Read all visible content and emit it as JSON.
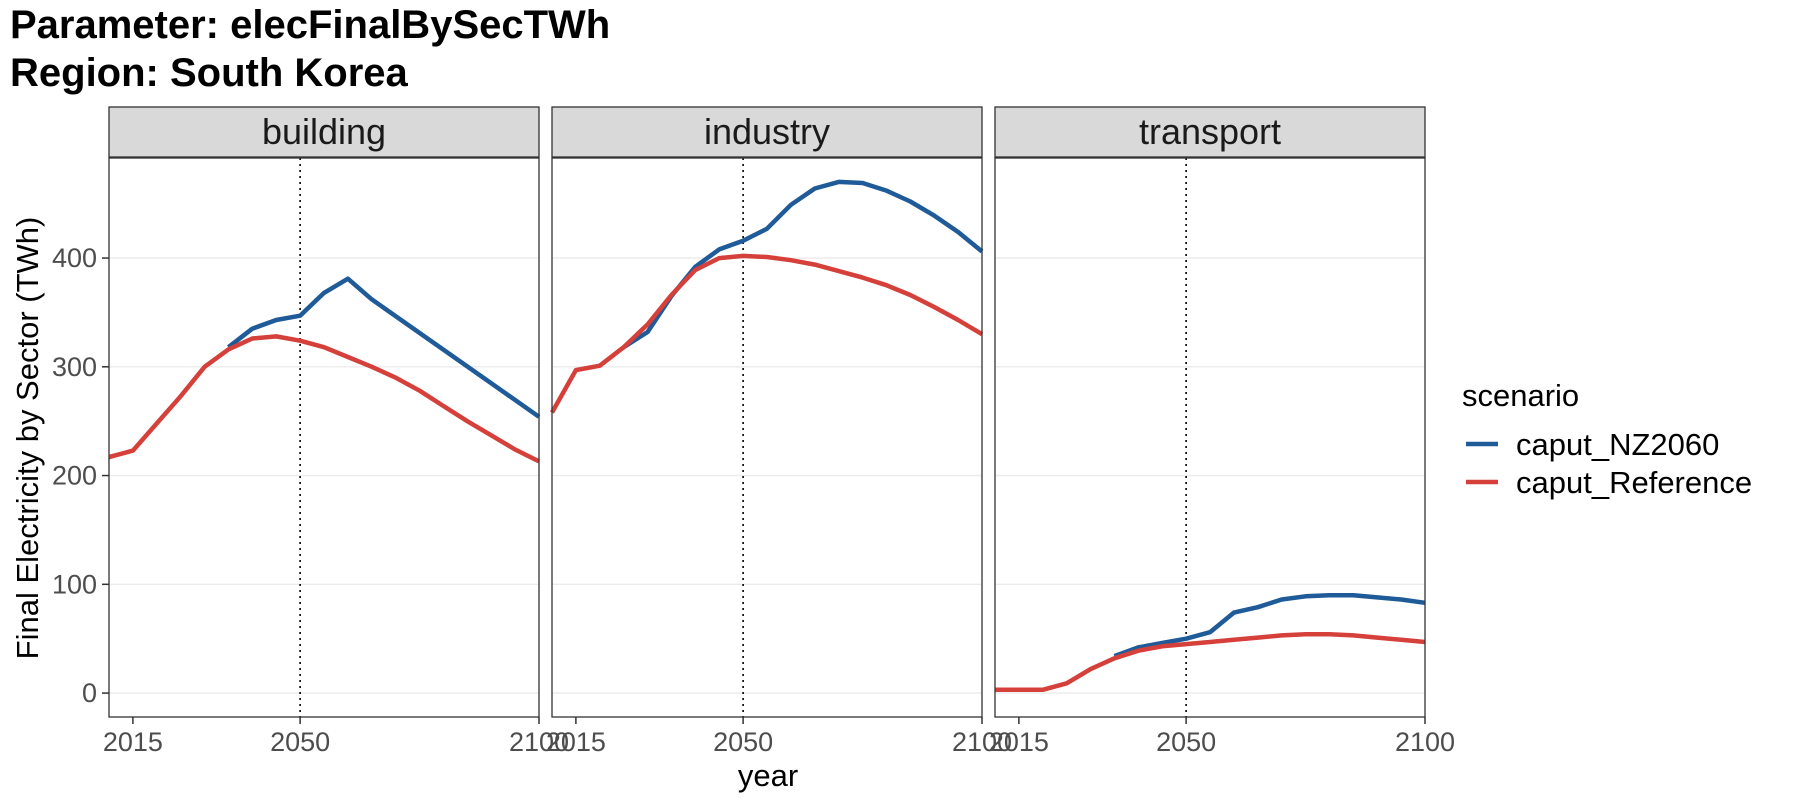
{
  "title_line1": "Parameter: elecFinalBySecTWh",
  "title_line2": "Region: South Korea",
  "colors": {
    "caput_NZ2060": "#1f5a99",
    "caput_Reference": "#d6403a",
    "strip_bg": "#d9d9d9",
    "grid": "#ebebeb"
  },
  "chart_data": {
    "type": "line",
    "xlabel": "year",
    "ylabel": "Final Electricity by Sector (TWh)",
    "xlim": [
      2010,
      2100
    ],
    "ylim": [
      -22,
      492
    ],
    "x_ticks": [
      2015,
      2050,
      2100
    ],
    "y_ticks": [
      0,
      100,
      200,
      300,
      400
    ],
    "vline_x": 2050,
    "grid": true,
    "legend": {
      "title": "scenario",
      "position": "right",
      "entries": [
        "caput_NZ2060",
        "caput_Reference"
      ]
    },
    "facets": [
      {
        "name": "building",
        "series": [
          {
            "name": "caput_NZ2060",
            "x": [
              2035,
              2040,
              2045,
              2050,
              2055,
              2060,
              2065,
              2100
            ],
            "y": [
              318,
              335,
              343,
              347,
              368,
              381,
              362,
              254
            ]
          },
          {
            "name": "caput_Reference",
            "x": [
              2010,
              2015,
              2020,
              2025,
              2030,
              2035,
              2040,
              2045,
              2050,
              2055,
              2060,
              2065,
              2070,
              2075,
              2080,
              2085,
              2090,
              2095,
              2100
            ],
            "y": [
              217,
              223,
              248,
              273,
              300,
              316,
              326,
              328,
              324,
              318,
              309,
              300,
              290,
              278,
              264,
              250,
              237,
              224,
              213
            ]
          }
        ]
      },
      {
        "name": "industry",
        "series": [
          {
            "name": "caput_NZ2060",
            "x": [
              2025,
              2030,
              2035,
              2040,
              2045,
              2050,
              2055,
              2060,
              2065,
              2070,
              2075,
              2080,
              2085,
              2090,
              2095,
              2100
            ],
            "y": [
              318,
              332,
              365,
              392,
              408,
              416,
              427,
              449,
              464,
              470,
              469,
              462,
              452,
              439,
              424,
              406
            ]
          },
          {
            "name": "caput_Reference",
            "x": [
              2010,
              2015,
              2020,
              2025,
              2030,
              2035,
              2040,
              2045,
              2050,
              2055,
              2060,
              2065,
              2070,
              2075,
              2080,
              2085,
              2090,
              2095,
              2100
            ],
            "y": [
              258,
              297,
              301,
              318,
              339,
              366,
              389,
              400,
              402,
              401,
              398,
              394,
              388,
              382,
              375,
              366,
              355,
              343,
              330
            ]
          }
        ]
      },
      {
        "name": "transport",
        "series": [
          {
            "name": "caput_NZ2060",
            "x": [
              2035,
              2040,
              2045,
              2050,
              2055,
              2060,
              2065,
              2070,
              2075,
              2080,
              2085,
              2090,
              2095,
              2100
            ],
            "y": [
              34,
              42,
              46,
              50,
              56,
              74,
              79,
              86,
              89,
              90,
              90,
              88,
              86,
              83
            ]
          },
          {
            "name": "caput_Reference",
            "x": [
              2010,
              2015,
              2020,
              2025,
              2030,
              2035,
              2040,
              2045,
              2050,
              2055,
              2060,
              2065,
              2070,
              2075,
              2080,
              2085,
              2090,
              2095,
              2100
            ],
            "y": [
              3,
              3,
              3,
              9,
              22,
              32,
              39,
              43,
              45,
              47,
              49,
              51,
              53,
              54,
              54,
              53,
              51,
              49,
              47
            ]
          }
        ]
      }
    ]
  }
}
